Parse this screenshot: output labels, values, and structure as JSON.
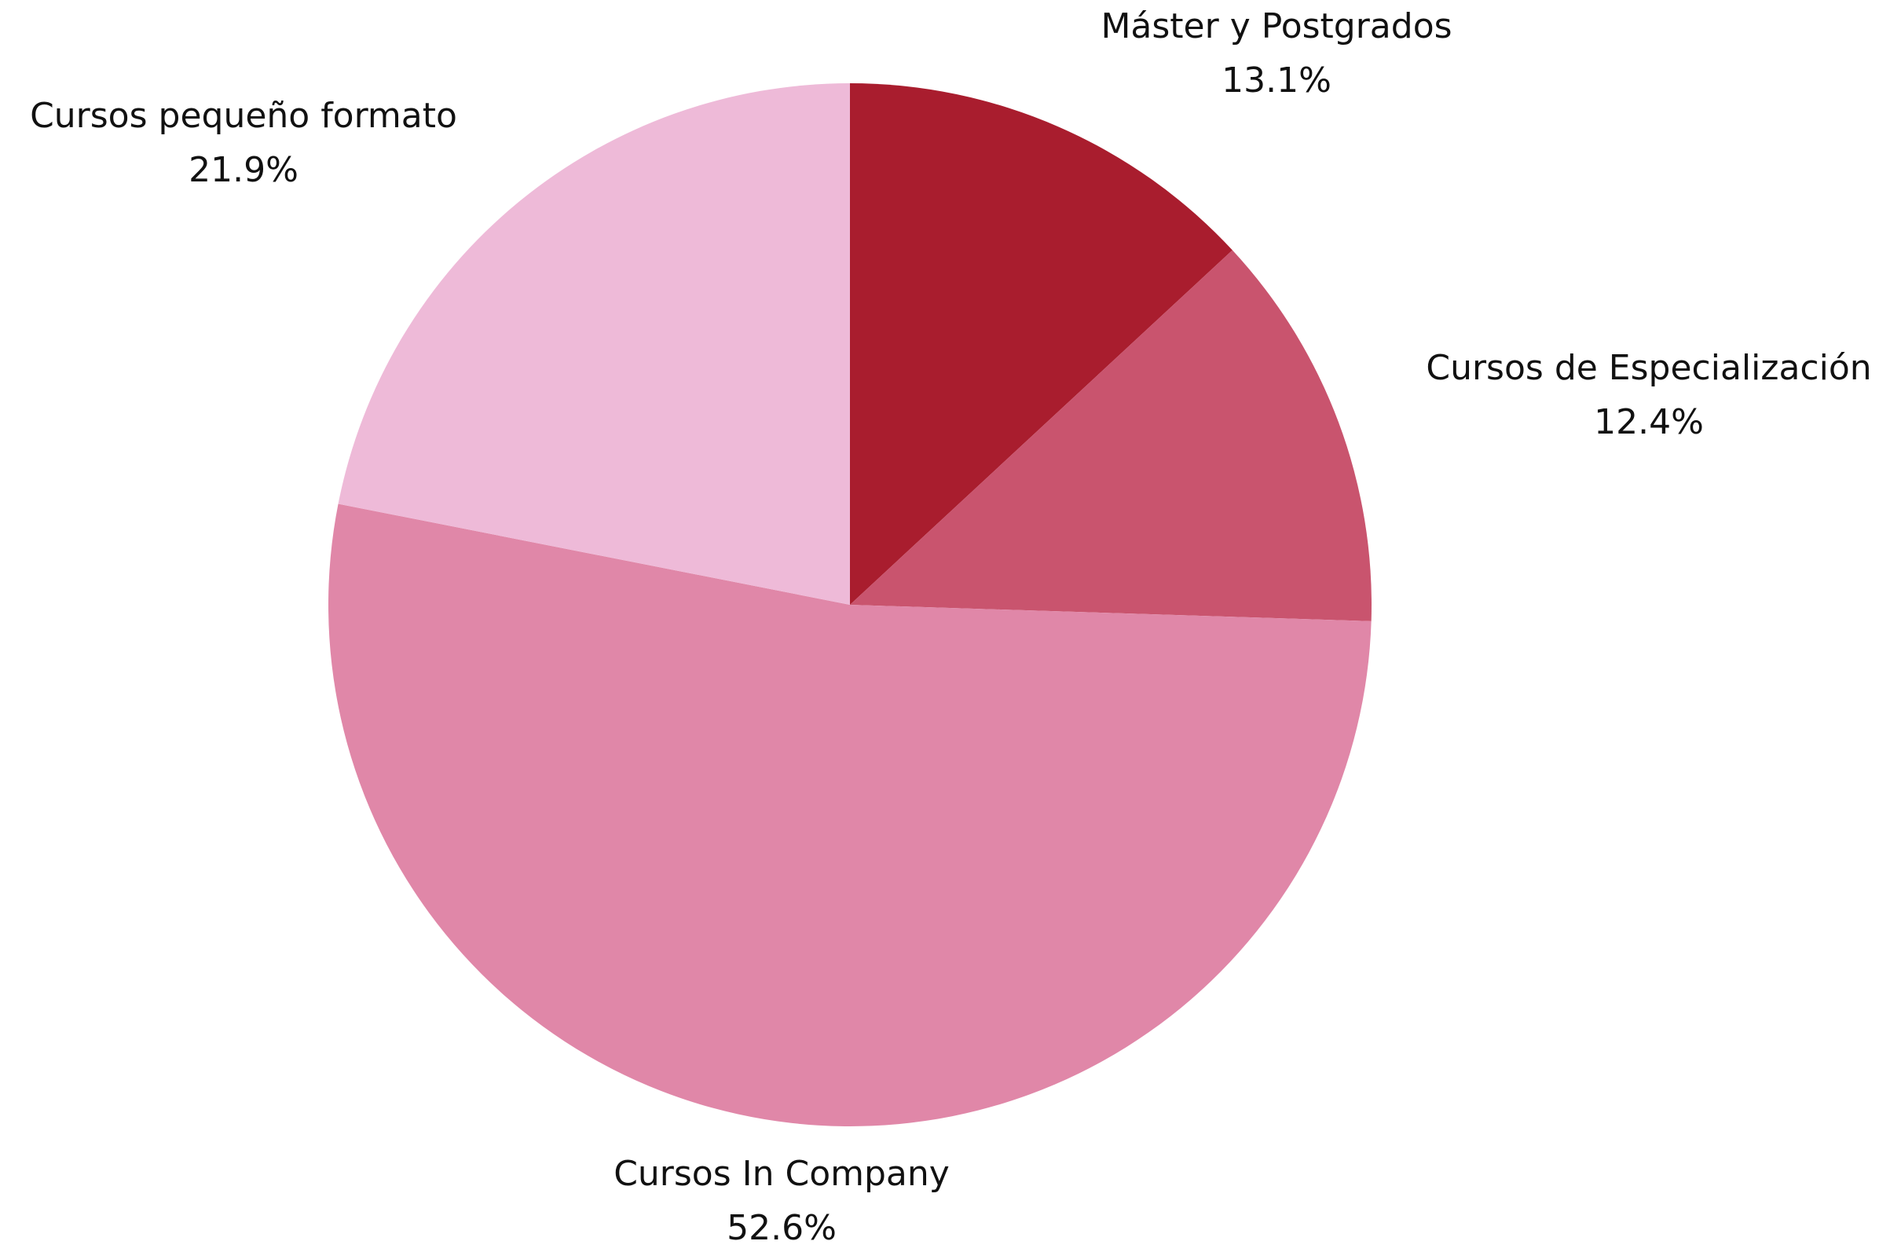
{
  "chart_data": {
    "type": "pie",
    "categories": [
      "Máster y Postgrados",
      "Cursos de Especialización",
      "Cursos In Company",
      "Cursos pequeño formato"
    ],
    "values": [
      13.1,
      12.4,
      52.6,
      21.9
    ],
    "value_labels": [
      "13.1%",
      "12.4%",
      "52.6%",
      "21.9%"
    ],
    "colors": [
      "#a91d2e",
      "#c9546e",
      "#e087a8",
      "#eebad8"
    ]
  }
}
